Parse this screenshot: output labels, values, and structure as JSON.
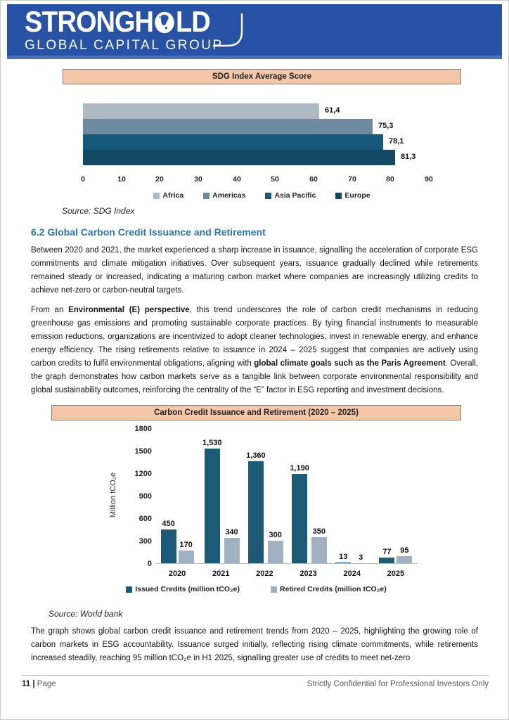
{
  "header": {
    "brand_pre": "STRONGH",
    "brand_post": "LD",
    "brand_line2": "GLOBAL CAPITAL GROUP"
  },
  "colors": {
    "header_blue": "#2852A5",
    "header_strip": "#4A6FB8",
    "chart_banner_fill": "#F5C7A9",
    "chart_banner_border": "#7F7F7F",
    "heading_blue": "#2E74B5",
    "footer_gray": "#595959"
  },
  "chart_data": [
    {
      "type": "bar",
      "orientation": "horizontal",
      "title": "SDG Index Average Score",
      "categories": [
        "Africa",
        "Americas",
        "Asia Pacific",
        "Europe"
      ],
      "values": [
        61.4,
        75.3,
        78.1,
        81.3
      ],
      "value_labels": [
        "61,4",
        "75,3",
        "78,1",
        "81,3"
      ],
      "colors": [
        "#AFBAC5",
        "#6D8AA0",
        "#17597B",
        "#124A63"
      ],
      "xlim": [
        0,
        90
      ],
      "xticks": [
        0,
        10,
        20,
        30,
        40,
        50,
        60,
        70,
        80,
        90
      ],
      "grid": false,
      "legend_position": "bottom",
      "source": "Source: SDG Index"
    },
    {
      "type": "bar",
      "orientation": "vertical",
      "title": "Carbon Credit Issuance and Retirement (2020 – 2025)",
      "categories": [
        "2020",
        "2021",
        "2022",
        "2023",
        "2024",
        "2025"
      ],
      "series": [
        {
          "name": "Issued Credits (million tCO₂e)",
          "color": "#1C5A78",
          "values": [
            450,
            1530,
            1360,
            1190,
            13,
            77
          ],
          "value_labels": [
            "450",
            "1,530",
            "1,360",
            "1,190",
            "13",
            "77"
          ]
        },
        {
          "name": "Retired Credits (million tCO₂e)",
          "color": "#A2B1C2",
          "values": [
            170,
            340,
            300,
            350,
            3,
            95
          ],
          "value_labels": [
            "170",
            "340",
            "300",
            "350",
            "3",
            "95"
          ]
        }
      ],
      "ylabel": "Million tCO₂e",
      "ylim": [
        0,
        1800
      ],
      "yticks": [
        0,
        300,
        600,
        900,
        1200,
        1500,
        1800
      ],
      "grid": false,
      "legend_position": "bottom",
      "source": "Source: World bank"
    }
  ],
  "section": {
    "heading": "6.2 Global Carbon Credit Issuance and Retirement",
    "paragraphs": [
      [
        {
          "t": "Between 2020 and 2021, the market experienced a sharp increase in issuance, signalling the acceleration of corporate ESG commitments and climate mitigation initiatives. Over subsequent years, issuance gradually declined while retirements remained steady or increased, indicating a maturing carbon market where companies are increasingly utilizing credits to achieve net-zero or carbon-neutral targets.",
          "b": false
        }
      ],
      [
        {
          "t": "From an ",
          "b": false
        },
        {
          "t": "Environmental (E) perspective",
          "b": true
        },
        {
          "t": ", this trend underscores the role of carbon credit mechanisms in reducing greenhouse gas emissions and promoting sustainable corporate practices. By tying financial instruments to measurable emission reductions, organizations are incentivized to adopt cleaner technologies, invest in renewable energy, and enhance energy efficiency. The rising retirements relative to issuance in 2024 – 2025 suggest that companies are actively using carbon credits to fulfil environmental obligations, aligning with ",
          "b": false
        },
        {
          "t": "global climate goals such as the Paris Agreement",
          "b": true
        },
        {
          "t": ". Overall, the graph demonstrates how carbon markets serve as a tangible link between corporate environmental responsibility and global sustainability outcomes, reinforcing the centrality of the “E” factor in ESG reporting and investment decisions.",
          "b": false
        }
      ]
    ]
  },
  "closing_paragraph": [
    {
      "t": "The graph shows global carbon credit issuance and retirement trends from 2020 – 2025, highlighting the growing role of carbon markets in ESG accountability. Issuance surged initially, reflecting rising climate commitments, while retirements increased steadily, reaching 95 million tCO₂e in H1 2025, signalling greater use of credits to meet net-zero",
      "b": false
    }
  ],
  "footer": {
    "page_number": "11",
    "separator": "|",
    "page_word": "Page",
    "confidentiality": "Strictly Confidential for Professional Investors Only"
  }
}
